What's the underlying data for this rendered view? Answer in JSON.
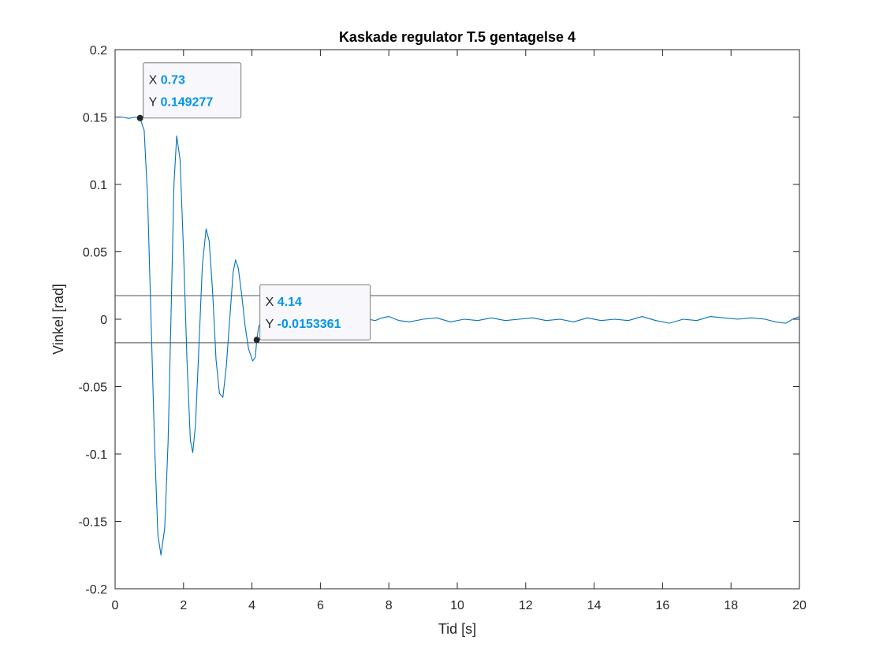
{
  "chart_data": {
    "type": "line",
    "title": "Kaskade regulator T.5 gentagelse 4",
    "xlabel": "Tid [s]",
    "ylabel": "Vinkel [rad]",
    "xlim": [
      0,
      20
    ],
    "ylim": [
      -0.2,
      0.2
    ],
    "xticks": [
      0,
      2,
      4,
      6,
      8,
      10,
      12,
      14,
      16,
      18,
      20
    ],
    "xtick_labels": [
      "0",
      "2",
      "4",
      "6",
      "8",
      "10",
      "12",
      "14",
      "16",
      "18",
      "20"
    ],
    "yticks": [
      -0.2,
      -0.15,
      -0.1,
      -0.05,
      0,
      0.05,
      0.1,
      0.15,
      0.2
    ],
    "ytick_labels": [
      "-0.2",
      "-0.15",
      "-0.1",
      "-0.05",
      "0",
      "0.05",
      "0.1",
      "0.15",
      "0.2"
    ],
    "grid": false,
    "legend": "none",
    "line_color": "#0072bd",
    "reference_lines": [
      0.0175,
      -0.0175
    ],
    "reference_line_color": "#4d4d4d",
    "series": [
      {
        "x": [
          0,
          0.2,
          0.4,
          0.6,
          0.73,
          0.85,
          0.95,
          1.05,
          1.15,
          1.25,
          1.34,
          1.45,
          1.55,
          1.65,
          1.72,
          1.8,
          1.9,
          2.0,
          2.1,
          2.2,
          2.27,
          2.35,
          2.45,
          2.55,
          2.66,
          2.75,
          2.85,
          2.95,
          3.05,
          3.15,
          3.25,
          3.35,
          3.45,
          3.52,
          3.6,
          3.7,
          3.8,
          3.9,
          4.02,
          4.1,
          4.14,
          4.2,
          4.3,
          4.4,
          4.6,
          4.8,
          5.0,
          5.2,
          5.4,
          5.6,
          5.8,
          6.0,
          6.2,
          6.4,
          6.6,
          6.8,
          7.0,
          7.2,
          7.4,
          7.6,
          7.8,
          8.0,
          8.3,
          8.6,
          9.0,
          9.4,
          9.8,
          10.2,
          10.6,
          11.0,
          11.4,
          11.8,
          12.2,
          12.6,
          13.0,
          13.4,
          13.8,
          14.2,
          14.6,
          15.0,
          15.4,
          15.8,
          16.2,
          16.6,
          17.0,
          17.4,
          17.8,
          18.2,
          18.6,
          19.0,
          19.3,
          19.6,
          19.8,
          20.0
        ],
        "y": [
          0.15,
          0.15,
          0.149,
          0.15,
          0.149,
          0.14,
          0.09,
          0.0,
          -0.09,
          -0.16,
          -0.175,
          -0.155,
          -0.09,
          0.02,
          0.1,
          0.136,
          0.118,
          0.05,
          -0.03,
          -0.09,
          -0.099,
          -0.078,
          -0.02,
          0.04,
          0.067,
          0.058,
          0.02,
          -0.03,
          -0.055,
          -0.058,
          -0.035,
          0.0,
          0.035,
          0.044,
          0.038,
          0.018,
          -0.005,
          -0.022,
          -0.031,
          -0.028,
          -0.015,
          -0.005,
          -0.002,
          0.0,
          0.002,
          0.0,
          -0.001,
          0.001,
          0.0,
          -0.001,
          0.001,
          0.002,
          -0.001,
          0.001,
          0.0,
          -0.001,
          0.001,
          0.002,
          0.0,
          -0.001,
          0.001,
          0.002,
          -0.001,
          -0.002,
          0.0,
          0.001,
          -0.002,
          0.0,
          -0.001,
          0.001,
          -0.001,
          0.0,
          0.001,
          -0.001,
          0.0,
          -0.002,
          0.001,
          -0.001,
          0.0,
          -0.001,
          0.002,
          -0.001,
          -0.003,
          0.0,
          -0.001,
          0.002,
          0.001,
          0.0,
          0.001,
          0.0,
          -0.002,
          -0.003,
          0.0,
          0.002
        ]
      }
    ],
    "datatips": [
      {
        "x": 0.73,
        "y": 0.149277,
        "x_label": "X",
        "y_label": "Y",
        "x_text": "0.73",
        "y_text": "0.149277"
      },
      {
        "x": 4.14,
        "y": -0.0153361,
        "x_label": "X",
        "y_label": "Y",
        "x_text": "4.14",
        "y_text": "-0.0153361"
      }
    ],
    "datatip_value_color": "#0095e8"
  }
}
